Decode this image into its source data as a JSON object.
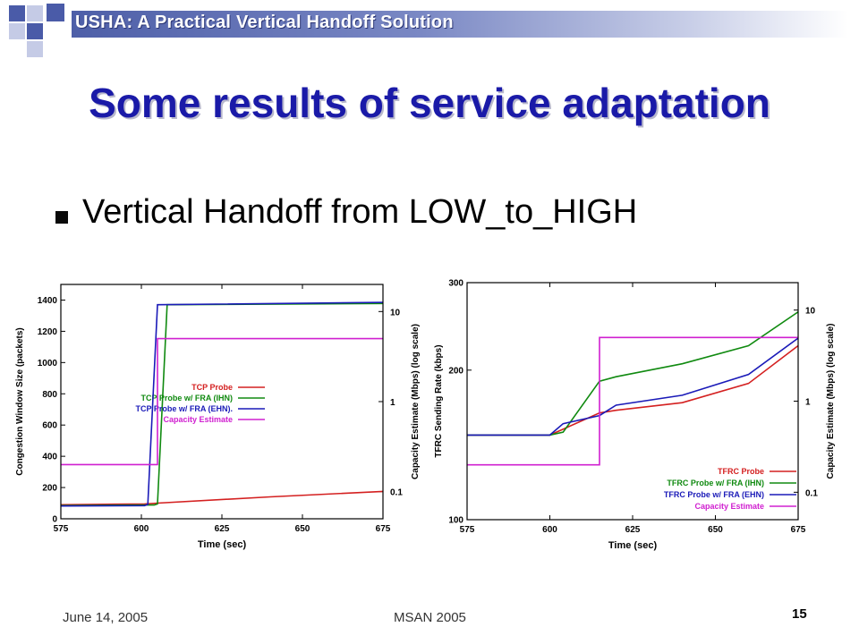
{
  "header": {
    "title": "USHA: A Practical Vertical Handoff Solution"
  },
  "slide": {
    "title": "Some results of service adaptation",
    "bullet": "Vertical Handoff from LOW_to_HIGH"
  },
  "footer": {
    "date": "June 14, 2005",
    "venue": "MSAN 2005",
    "page": "15"
  },
  "colors": {
    "title": "#1a1aa8",
    "red": "#d42020",
    "green": "#108a10",
    "blue": "#1a1ab8",
    "magenta": "#d020d0"
  },
  "chart_data": [
    {
      "type": "line",
      "xlabel": "Time (sec)",
      "ylabel": "Congestion Window Size (packets)",
      "y2label": "Capacity Estimate (Mbps) (log scale)",
      "xlim": [
        575,
        675
      ],
      "ylim": [
        0,
        1500
      ],
      "y2lim": [
        0.05,
        20
      ],
      "y2scale": "log",
      "xticks": [
        "575",
        "600",
        "625",
        "650",
        "675"
      ],
      "yticks": [
        "0",
        "200",
        "400",
        "600",
        "800",
        "1000",
        "1200",
        "1400"
      ],
      "y2ticks": [
        {
          "value": 0.1,
          "label": "0.1"
        },
        {
          "value": 1,
          "label": "1"
        },
        {
          "value": 10,
          "label": "10"
        }
      ],
      "legend_position": "right",
      "series": [
        {
          "name": "TCP Probe",
          "color": "#d42020",
          "axis": "y",
          "x": [
            575,
            601,
            605,
            640,
            675
          ],
          "y": [
            90,
            95,
            100,
            140,
            175
          ]
        },
        {
          "name": "TCP Probe w/ FRA (IHN)",
          "color": "#108a10",
          "axis": "y",
          "x": [
            575,
            604,
            605,
            608,
            675
          ],
          "y": [
            85,
            88,
            95,
            1370,
            1378
          ]
        },
        {
          "name": "TCP Probe w/ FRA (EHN).",
          "color": "#1a1ab8",
          "axis": "y",
          "x": [
            575,
            601,
            602,
            605,
            675
          ],
          "y": [
            82,
            84,
            92,
            1370,
            1385
          ]
        },
        {
          "name": "Capacity Estimate",
          "color": "#d020d0",
          "axis": "y2",
          "x": [
            575,
            605,
            605,
            675
          ],
          "y": [
            0.2,
            0.2,
            5,
            5
          ]
        }
      ]
    },
    {
      "type": "line",
      "xlabel": "Time (sec)",
      "ylabel": "TFRC Sending Rate (kbps)",
      "y2label": "Capacity Estimate (Mbps) (log scale)",
      "xlim": [
        575,
        675
      ],
      "ylim": [
        100,
        300
      ],
      "yscale": "log",
      "y2lim": [
        0.05,
        20
      ],
      "y2scale": "log",
      "xticks": [
        "575",
        "600",
        "625",
        "650",
        "675"
      ],
      "yticks": [
        {
          "value": 100,
          "label": "100"
        },
        {
          "value": 200,
          "label": "200"
        },
        {
          "value": 300,
          "label": "300"
        }
      ],
      "y2ticks": [
        {
          "value": 0.1,
          "label": "0.1"
        },
        {
          "value": 1,
          "label": "1"
        },
        {
          "value": 10,
          "label": "10"
        }
      ],
      "legend_position": "bottom-right",
      "series": [
        {
          "name": "TFRC Probe",
          "color": "#d42020",
          "axis": "y",
          "x": [
            575,
            600,
            615,
            620,
            640,
            660,
            675
          ],
          "y": [
            148,
            148,
            164,
            166,
            172,
            188,
            224
          ]
        },
        {
          "name": "TFRC Probe w/ FRA (IHN)",
          "color": "#108a10",
          "axis": "y",
          "x": [
            575,
            600,
            604,
            615,
            620,
            640,
            660,
            675
          ],
          "y": [
            148,
            148,
            150,
            190,
            194,
            206,
            224,
            262
          ]
        },
        {
          "name": "TFRC Probe w/ FRA (EHN)",
          "color": "#1a1ab8",
          "axis": "y",
          "x": [
            575,
            600,
            604,
            615,
            620,
            640,
            660,
            675
          ],
          "y": [
            148,
            148,
            156,
            162,
            170,
            178,
            196,
            232
          ]
        },
        {
          "name": "Capacity Estimate",
          "color": "#d020d0",
          "axis": "y2",
          "x": [
            575,
            615,
            615,
            675
          ],
          "y": [
            0.2,
            0.2,
            5,
            5
          ]
        }
      ]
    }
  ]
}
